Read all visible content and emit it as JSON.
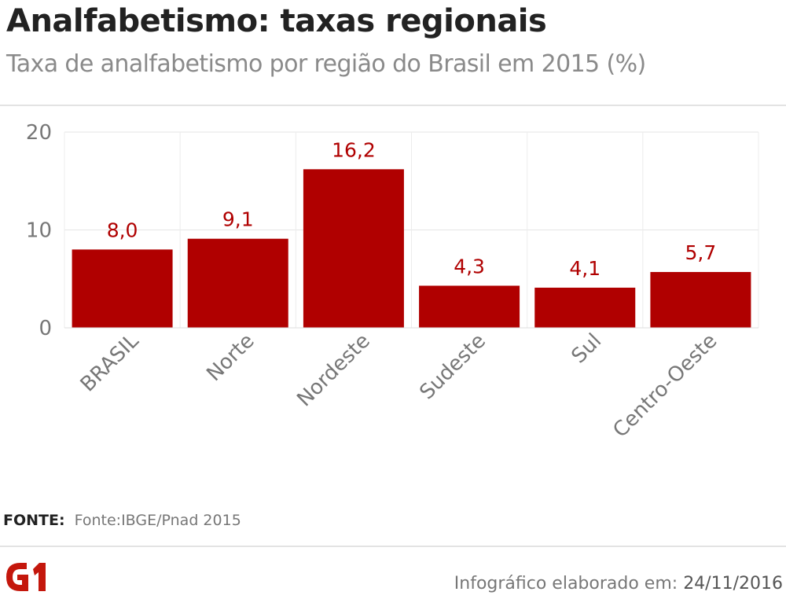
{
  "header": {
    "title": "Analfabetismo: taxas regionais",
    "subtitle": "Taxa de analfabetismo por região do Brasil em 2015 (%)"
  },
  "chart_data": {
    "type": "bar",
    "categories": [
      "BRASIL",
      "Norte",
      "Nordeste",
      "Sudeste",
      "Sul",
      "Centro-Oeste"
    ],
    "values": [
      8.0,
      9.1,
      16.2,
      4.3,
      4.1,
      5.7
    ],
    "value_labels": [
      "8,0",
      "9,1",
      "16,2",
      "4,3",
      "4,1",
      "5,7"
    ],
    "title": "Taxa de analfabetismo por região do Brasil em 2015 (%)",
    "ylim": [
      0,
      20
    ],
    "yticks": [
      0,
      10,
      20
    ],
    "grid": true,
    "bar_color": "#b00000",
    "label_color": "#b00000"
  },
  "footer": {
    "source_label": "FONTE:",
    "source_text": "Fonte:IBGE/Pnad 2015",
    "logo_text": "G1",
    "credit_label": "Infográfico elaborado em:",
    "credit_date": "24/11/2016"
  },
  "colors": {
    "brand": "#c4170c",
    "bar": "#b00000",
    "axis_text": "#777777"
  }
}
